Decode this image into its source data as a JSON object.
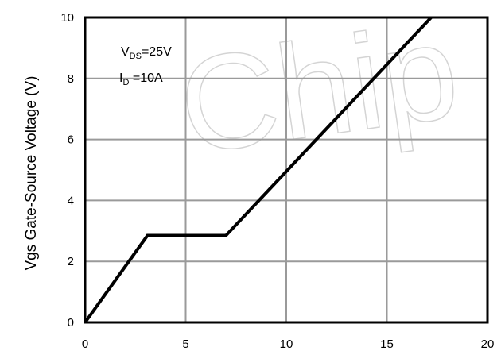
{
  "chart_data": {
    "type": "line",
    "ylabel": "Vgs Gate-Source Voltage (V)",
    "xlabel": "",
    "xlim": [
      0,
      20
    ],
    "ylim": [
      0,
      10
    ],
    "x_ticks": [
      "0",
      "5",
      "10",
      "15",
      "20"
    ],
    "y_ticks": [
      "0",
      "2",
      "4",
      "6",
      "8",
      "10"
    ],
    "grid": true,
    "annotations": [
      {
        "main": "V",
        "sub": "DS",
        "rest": "=25V"
      },
      {
        "main": "I",
        "sub": "D",
        "rest": " =10A"
      }
    ],
    "watermark": "Chip",
    "series": [
      {
        "x": [
          0,
          3.1,
          7.0,
          17.2
        ],
        "y": [
          0,
          2.85,
          2.85,
          10
        ]
      }
    ]
  }
}
